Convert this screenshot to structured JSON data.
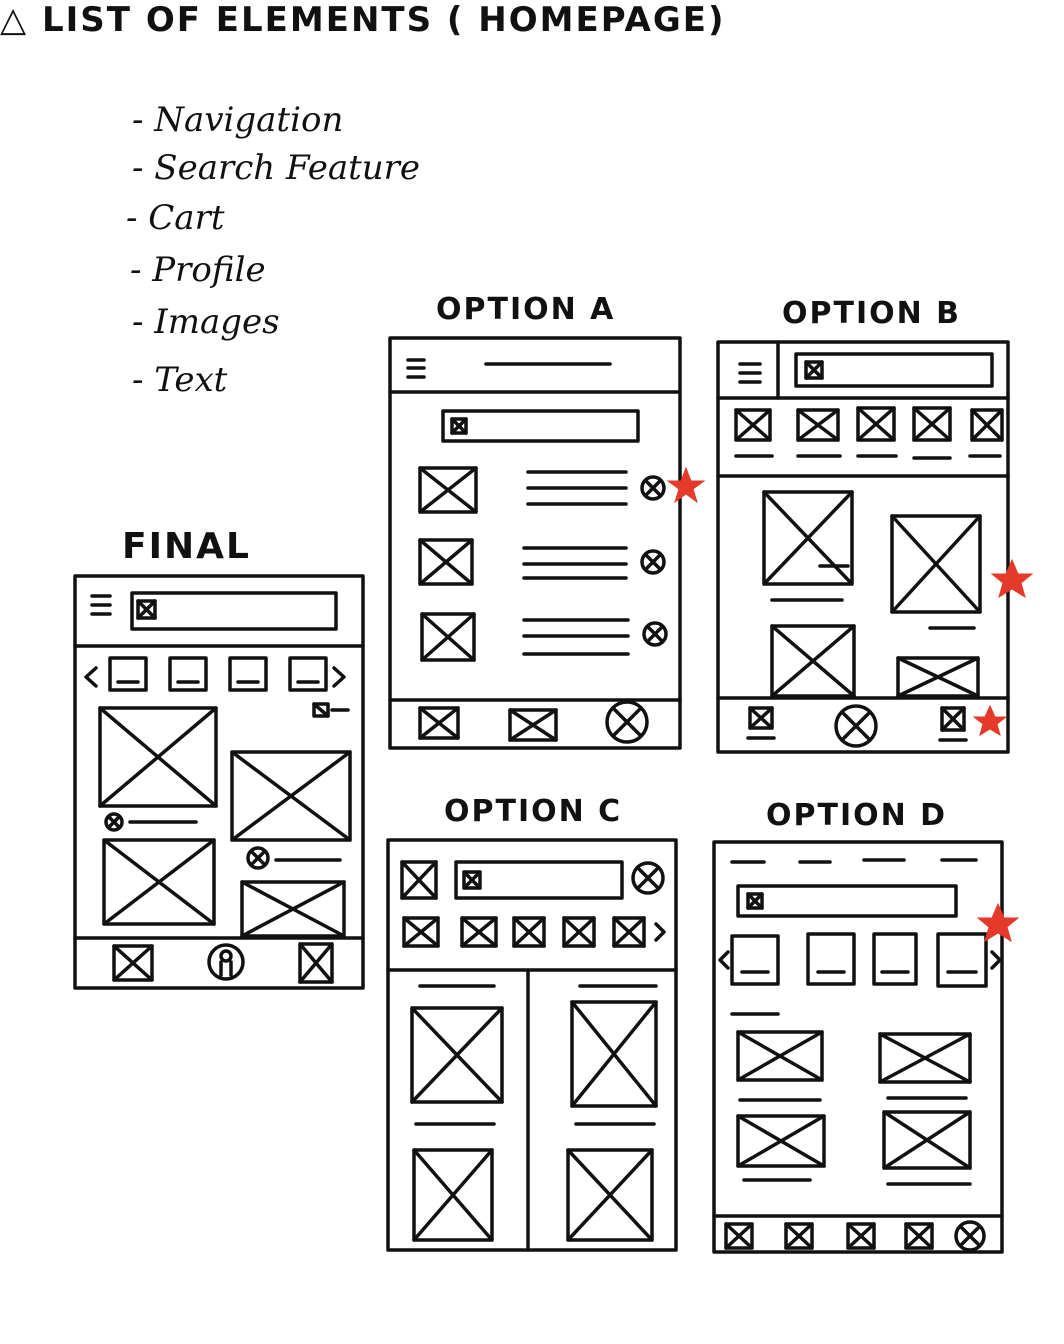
{
  "heading": "△ LIST OF ELEMENTS ( HOMEPAGE)",
  "elements": [
    "- Navigation",
    "- Search Feature",
    "- Cart",
    "- Profile",
    "- Images",
    "- Text"
  ],
  "labels": {
    "final": "FINAL",
    "option_a": "OPTION A",
    "option_b": "OPTION B",
    "option_c": "OPTION C",
    "option_d": "OPTION D"
  },
  "colors": {
    "ink": "#111111",
    "star": "#e53a2a",
    "paper": "#ffffff"
  }
}
